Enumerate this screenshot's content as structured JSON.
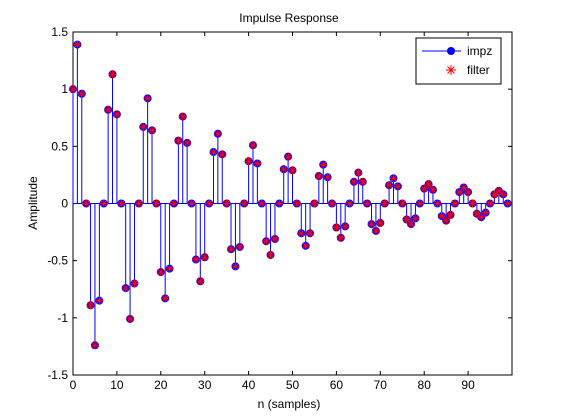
{
  "chart_data": {
    "type": "stem",
    "title": "Impulse Response",
    "xlabel": "n (samples)",
    "ylabel": "Amplitude",
    "xlim": [
      0,
      100
    ],
    "ylim": [
      -1.5,
      1.5
    ],
    "x_ticks": [
      0,
      10,
      20,
      30,
      40,
      50,
      60,
      70,
      80,
      90
    ],
    "y_ticks": [
      1.5,
      1,
      0.5,
      0,
      -0.5,
      -1,
      -1.5
    ],
    "x_tick_labels": [
      "0",
      "10",
      "20",
      "30",
      "40",
      "50",
      "60",
      "70",
      "80",
      "90"
    ],
    "y_tick_labels": [
      "1.5",
      "1",
      "0.5",
      "0",
      "-0.5",
      "-1",
      "-1.5"
    ],
    "grid": false,
    "legend_position": "top-right",
    "series": [
      {
        "name": "impz",
        "style": "stem",
        "color": "#0000ff",
        "marker": "filled-circle",
        "x": [
          0,
          1,
          2,
          3,
          4,
          5,
          6,
          7,
          8,
          9,
          10,
          11,
          12,
          13,
          14,
          15,
          16,
          17,
          18,
          19,
          20,
          21,
          22,
          23,
          24,
          25,
          26,
          27,
          28,
          29,
          30,
          31,
          32,
          33,
          34,
          35,
          36,
          37,
          38,
          39,
          40,
          41,
          42,
          43,
          44,
          45,
          46,
          47,
          48,
          49,
          50,
          51,
          52,
          53,
          54,
          55,
          56,
          57,
          58,
          59,
          60,
          61,
          62,
          63,
          64,
          65,
          66,
          67,
          68,
          69,
          70,
          71,
          72,
          73,
          74,
          75,
          76,
          77,
          78,
          79,
          80,
          81,
          82,
          83,
          84,
          85,
          86,
          87,
          88,
          89,
          90,
          91,
          92,
          93,
          94,
          95,
          96,
          97,
          98,
          99
        ],
        "y": [
          1.0,
          1.39,
          0.96,
          0.0,
          -0.89,
          -1.24,
          -0.85,
          0.0,
          0.82,
          1.13,
          0.78,
          0.0,
          -0.74,
          -1.01,
          -0.7,
          0.0,
          0.67,
          0.92,
          0.64,
          0.0,
          -0.6,
          -0.83,
          -0.57,
          0.0,
          0.55,
          0.76,
          0.53,
          0.0,
          -0.49,
          -0.68,
          -0.47,
          0.0,
          0.45,
          0.61,
          0.43,
          0.0,
          -0.4,
          -0.55,
          -0.38,
          0.0,
          0.37,
          0.51,
          0.35,
          0.0,
          -0.33,
          -0.45,
          -0.31,
          0.0,
          0.3,
          0.41,
          0.29,
          0.0,
          -0.26,
          -0.37,
          -0.26,
          0.0,
          0.24,
          0.34,
          0.23,
          0.0,
          -0.21,
          -0.3,
          -0.2,
          0.0,
          0.19,
          0.27,
          0.19,
          0.0,
          -0.18,
          -0.24,
          -0.17,
          0.0,
          0.16,
          0.22,
          0.15,
          0.0,
          -0.14,
          -0.18,
          -0.13,
          0.0,
          0.13,
          0.17,
          0.12,
          0.0,
          -0.11,
          -0.15,
          -0.1,
          0.0,
          0.1,
          0.14,
          0.1,
          0.0,
          -0.09,
          -0.12,
          -0.08,
          0.0,
          0.08,
          0.11,
          0.08,
          0.0
        ]
      },
      {
        "name": "filter",
        "style": "marker",
        "color": "#ff0000",
        "marker": "asterisk",
        "x": [
          0,
          1,
          2,
          3,
          4,
          5,
          6,
          7,
          8,
          9,
          10,
          11,
          12,
          13,
          14,
          15,
          16,
          17,
          18,
          19,
          20,
          21,
          22,
          23,
          24,
          25,
          26,
          27,
          28,
          29,
          30,
          31,
          32,
          33,
          34,
          35,
          36,
          37,
          38,
          39,
          40,
          41,
          42,
          43,
          44,
          45,
          46,
          47,
          48,
          49,
          50,
          51,
          52,
          53,
          54,
          55,
          56,
          57,
          58,
          59,
          60,
          61,
          62,
          63,
          64,
          65,
          66,
          67,
          68,
          69,
          70,
          71,
          72,
          73,
          74,
          75,
          76,
          77,
          78,
          79,
          80,
          81,
          82,
          83,
          84,
          85,
          86,
          87,
          88,
          89,
          90,
          91,
          92,
          93,
          94,
          95,
          96,
          97,
          98,
          99
        ],
        "y": [
          1.0,
          1.39,
          0.96,
          0.0,
          -0.89,
          -1.24,
          -0.85,
          0.0,
          0.82,
          1.13,
          0.78,
          0.0,
          -0.74,
          -1.01,
          -0.7,
          0.0,
          0.67,
          0.92,
          0.64,
          0.0,
          -0.6,
          -0.83,
          -0.57,
          0.0,
          0.55,
          0.76,
          0.53,
          0.0,
          -0.49,
          -0.68,
          -0.47,
          0.0,
          0.45,
          0.61,
          0.43,
          0.0,
          -0.4,
          -0.55,
          -0.38,
          0.0,
          0.37,
          0.51,
          0.35,
          0.0,
          -0.33,
          -0.45,
          -0.31,
          0.0,
          0.3,
          0.41,
          0.29,
          0.0,
          -0.26,
          -0.37,
          -0.26,
          0.0,
          0.24,
          0.34,
          0.23,
          0.0,
          -0.21,
          -0.3,
          -0.2,
          0.0,
          0.19,
          0.27,
          0.19,
          0.0,
          -0.18,
          -0.24,
          -0.17,
          0.0,
          0.16,
          0.22,
          0.15,
          0.0,
          -0.14,
          -0.18,
          -0.13,
          0.0,
          0.13,
          0.17,
          0.12,
          0.0,
          -0.11,
          -0.15,
          -0.1,
          0.0,
          0.1,
          0.14,
          0.1,
          0.0,
          -0.09,
          -0.12,
          -0.08,
          0.0,
          0.08,
          0.11,
          0.08,
          0.0
        ]
      }
    ]
  }
}
